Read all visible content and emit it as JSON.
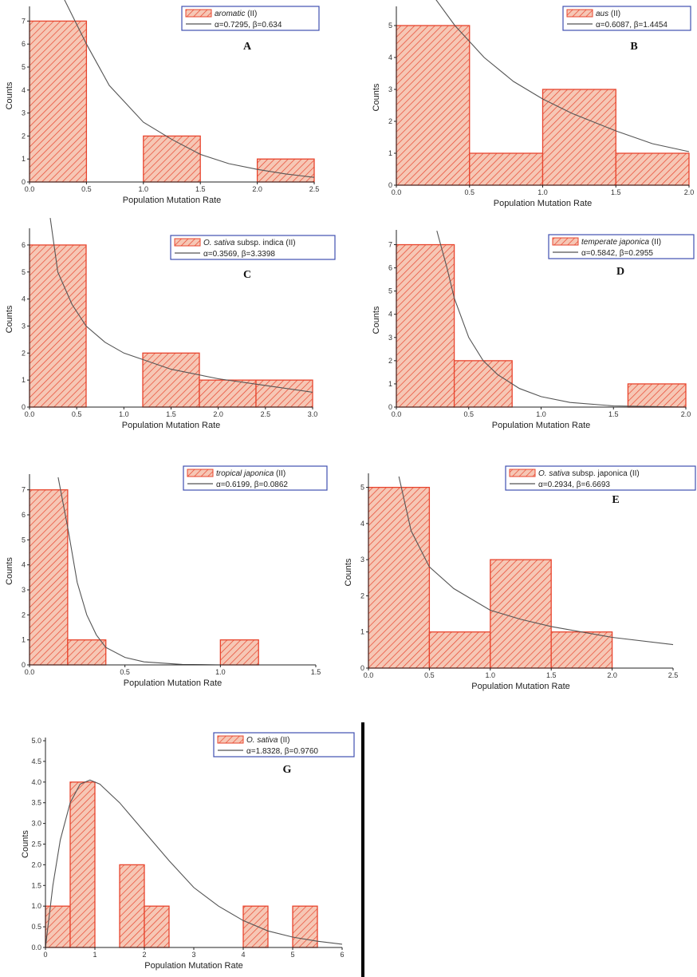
{
  "figure": {
    "divider_color": "#000000",
    "bar_stroke": "#e8452e",
    "bar_fill": "#f6c7b5",
    "hatch_color": "#e8452e",
    "curve_color": "#555555",
    "legend_border": "#3f4fb0"
  },
  "chart_data": [
    {
      "type": "bar",
      "panel": "A",
      "xlabel": "Population Mutation Rate",
      "ylabel": "Counts",
      "xlim": [
        0,
        2.5
      ],
      "ylim": [
        0,
        7.5
      ],
      "xticks": [
        "0.0",
        "0.5",
        "1.0",
        "1.5",
        "2.0",
        "2.5"
      ],
      "yticks": [
        "0",
        "1",
        "2",
        "3",
        "4",
        "5",
        "6",
        "7"
      ],
      "bins": [
        {
          "x0": 0.0,
          "x1": 0.5,
          "value": 7
        },
        {
          "x0": 1.0,
          "x1": 1.5,
          "value": 2
        },
        {
          "x0": 2.0,
          "x1": 2.5,
          "value": 1
        }
      ],
      "legend": {
        "bar_label_prefix": "",
        "bar_label_italic": "aromatic",
        "bar_label_suffix": " (II)",
        "fit_label": "α=0.7295, β=0.634"
      },
      "curve": [
        [
          0.3,
          8.0
        ],
        [
          0.4,
          7.0
        ],
        [
          0.5,
          6.0
        ],
        [
          0.7,
          4.2
        ],
        [
          1.0,
          2.6
        ],
        [
          1.25,
          1.85
        ],
        [
          1.5,
          1.2
        ],
        [
          1.75,
          0.8
        ],
        [
          2.0,
          0.55
        ],
        [
          2.25,
          0.35
        ],
        [
          2.5,
          0.2
        ]
      ]
    },
    {
      "type": "bar",
      "panel": "B",
      "xlabel": "Population Mutation Rate",
      "ylabel": "Counts",
      "xlim": [
        0,
        2.0
      ],
      "ylim": [
        0,
        5.5
      ],
      "xticks": [
        "0.0",
        "0.5",
        "1.0",
        "1.5",
        "2.0"
      ],
      "yticks": [
        "0",
        "1",
        "2",
        "3",
        "4",
        "5"
      ],
      "bins": [
        {
          "x0": 0.0,
          "x1": 0.5,
          "value": 5
        },
        {
          "x0": 0.5,
          "x1": 1.0,
          "value": 1
        },
        {
          "x0": 1.0,
          "x1": 1.5,
          "value": 3
        },
        {
          "x0": 1.5,
          "x1": 2.0,
          "value": 1
        }
      ],
      "legend": {
        "bar_label_prefix": "",
        "bar_label_italic": "aus",
        "bar_label_suffix": " (II)",
        "fit_label": "α=0.6087, β=1.4454"
      },
      "curve": [
        [
          0.25,
          6.0
        ],
        [
          0.4,
          5.0
        ],
        [
          0.6,
          4.0
        ],
        [
          0.8,
          3.25
        ],
        [
          1.0,
          2.7
        ],
        [
          1.2,
          2.25
        ],
        [
          1.5,
          1.7
        ],
        [
          1.75,
          1.3
        ],
        [
          2.0,
          1.05
        ]
      ]
    },
    {
      "type": "bar",
      "panel": "C",
      "xlabel": "Population Mutation Rate",
      "ylabel": "Counts",
      "xlim": [
        0,
        3.0
      ],
      "ylim": [
        0,
        6.5
      ],
      "xticks": [
        "0.0",
        "0.5",
        "1.0",
        "1.5",
        "2.0",
        "2.5",
        "3.0"
      ],
      "yticks": [
        "0",
        "1",
        "2",
        "3",
        "4",
        "5",
        "6"
      ],
      "bins": [
        {
          "x0": 0.0,
          "x1": 0.6,
          "value": 6
        },
        {
          "x0": 1.2,
          "x1": 1.8,
          "value": 2
        },
        {
          "x0": 1.8,
          "x1": 2.4,
          "value": 1
        },
        {
          "x0": 2.4,
          "x1": 3.0,
          "value": 1
        }
      ],
      "legend": {
        "bar_label_prefix": "O. sativa",
        "bar_label_italic": "",
        "bar_label_suffix": " subsp. indica (II)",
        "fit_label": "α=0.3569, β=3.3398"
      },
      "curve": [
        [
          0.22,
          7.0
        ],
        [
          0.3,
          5.0
        ],
        [
          0.45,
          3.8
        ],
        [
          0.6,
          3.0
        ],
        [
          0.8,
          2.4
        ],
        [
          1.0,
          2.0
        ],
        [
          1.5,
          1.4
        ],
        [
          2.0,
          1.05
        ],
        [
          2.5,
          0.8
        ],
        [
          3.0,
          0.55
        ]
      ]
    },
    {
      "type": "bar",
      "panel": "D",
      "xlabel": "Population Mutation Rate",
      "ylabel": "Counts",
      "xlim": [
        0,
        2.0
      ],
      "ylim": [
        0,
        7.5
      ],
      "xticks": [
        "0.0",
        "0.5",
        "1.0",
        "1.5",
        "2.0"
      ],
      "yticks": [
        "0",
        "1",
        "2",
        "3",
        "4",
        "5",
        "6",
        "7"
      ],
      "bins": [
        {
          "x0": 0.0,
          "x1": 0.4,
          "value": 7
        },
        {
          "x0": 0.4,
          "x1": 0.8,
          "value": 2
        },
        {
          "x0": 1.6,
          "x1": 2.0,
          "value": 1
        }
      ],
      "legend": {
        "bar_label_prefix": "",
        "bar_label_italic": "temperate japonica",
        "bar_label_suffix": " (II)",
        "fit_label": "α=0.5842, β=0.2955"
      },
      "curve": [
        [
          0.28,
          7.6
        ],
        [
          0.35,
          6.0
        ],
        [
          0.4,
          4.7
        ],
        [
          0.5,
          3.0
        ],
        [
          0.6,
          2.0
        ],
        [
          0.7,
          1.4
        ],
        [
          0.85,
          0.8
        ],
        [
          1.0,
          0.45
        ],
        [
          1.2,
          0.2
        ],
        [
          1.5,
          0.05
        ],
        [
          2.0,
          0.0
        ]
      ]
    },
    {
      "type": "bar",
      "panel": "",
      "xlabel": "Population Mutation Rate",
      "ylabel": "Counts",
      "xlim": [
        0,
        1.5
      ],
      "ylim": [
        0,
        7.5
      ],
      "xticks": [
        "0.0",
        "0.5",
        "1.0",
        "1.5"
      ],
      "yticks": [
        "0",
        "1",
        "2",
        "3",
        "4",
        "5",
        "6",
        "7"
      ],
      "bins": [
        {
          "x0": 0.0,
          "x1": 0.2,
          "value": 7
        },
        {
          "x0": 0.2,
          "x1": 0.4,
          "value": 1
        },
        {
          "x0": 1.0,
          "x1": 1.2,
          "value": 1
        }
      ],
      "legend": {
        "bar_label_prefix": "",
        "bar_label_italic": "tropical japonica",
        "bar_label_suffix": " (II)",
        "fit_label": "α=0.6199, β=0.0862"
      },
      "curve": [
        [
          0.15,
          7.5
        ],
        [
          0.2,
          5.5
        ],
        [
          0.25,
          3.3
        ],
        [
          0.3,
          2.0
        ],
        [
          0.35,
          1.2
        ],
        [
          0.4,
          0.7
        ],
        [
          0.5,
          0.3
        ],
        [
          0.6,
          0.12
        ],
        [
          0.8,
          0.02
        ],
        [
          1.0,
          0.0
        ],
        [
          1.5,
          0.0
        ]
      ]
    },
    {
      "type": "bar",
      "panel": "E",
      "xlabel": "Population Mutation Rate",
      "ylabel": "Counts",
      "xlim": [
        0,
        2.5
      ],
      "ylim": [
        0,
        5.3
      ],
      "xticks": [
        "0.0",
        "0.5",
        "1.0",
        "1.5",
        "2.0",
        "2.5"
      ],
      "yticks": [
        "0",
        "1",
        "2",
        "3",
        "4",
        "5"
      ],
      "bins": [
        {
          "x0": 0.0,
          "x1": 0.5,
          "value": 5
        },
        {
          "x0": 0.5,
          "x1": 1.0,
          "value": 1
        },
        {
          "x0": 1.0,
          "x1": 1.5,
          "value": 3
        },
        {
          "x0": 1.5,
          "x1": 2.0,
          "value": 1
        }
      ],
      "legend": {
        "bar_label_prefix": "O. sativa",
        "bar_label_italic": "",
        "bar_label_suffix": " subsp. japonica (II)",
        "fit_label": "α=0.2934, β=6.6693"
      },
      "curve": [
        [
          0.25,
          5.3
        ],
        [
          0.35,
          3.8
        ],
        [
          0.5,
          2.8
        ],
        [
          0.7,
          2.2
        ],
        [
          1.0,
          1.6
        ],
        [
          1.25,
          1.35
        ],
        [
          1.5,
          1.15
        ],
        [
          2.0,
          0.85
        ],
        [
          2.5,
          0.65
        ]
      ]
    },
    {
      "type": "bar",
      "panel": "G",
      "xlabel": "Population Mutation Rate",
      "ylabel": "Counts",
      "xlim": [
        0,
        6
      ],
      "ylim": [
        0,
        5.0
      ],
      "xticks": [
        "0",
        "1",
        "2",
        "3",
        "4",
        "5",
        "6"
      ],
      "yticks": [
        "0.0",
        "0.5",
        "1.0",
        "1.5",
        "2.0",
        "2.5",
        "3.0",
        "3.5",
        "4.0",
        "4.5",
        "5.0"
      ],
      "bins": [
        {
          "x0": 0.0,
          "x1": 0.5,
          "value": 1
        },
        {
          "x0": 0.5,
          "x1": 1.0,
          "value": 4
        },
        {
          "x0": 1.5,
          "x1": 2.0,
          "value": 2
        },
        {
          "x0": 2.0,
          "x1": 2.5,
          "value": 1
        },
        {
          "x0": 4.0,
          "x1": 4.5,
          "value": 1
        },
        {
          "x0": 5.0,
          "x1": 5.5,
          "value": 1
        }
      ],
      "legend": {
        "bar_label_prefix": "O. sativa",
        "bar_label_italic": "",
        "bar_label_suffix": " (II)",
        "fit_label": "α=1.8328, β=0.9760"
      },
      "curve": [
        [
          0.0,
          0.0
        ],
        [
          0.15,
          1.5
        ],
        [
          0.3,
          2.6
        ],
        [
          0.5,
          3.5
        ],
        [
          0.7,
          3.95
        ],
        [
          0.9,
          4.05
        ],
        [
          1.1,
          3.95
        ],
        [
          1.5,
          3.5
        ],
        [
          2.0,
          2.8
        ],
        [
          2.5,
          2.1
        ],
        [
          3.0,
          1.45
        ],
        [
          3.5,
          1.0
        ],
        [
          4.0,
          0.65
        ],
        [
          4.5,
          0.4
        ],
        [
          5.0,
          0.25
        ],
        [
          5.5,
          0.15
        ],
        [
          6.0,
          0.08
        ]
      ]
    }
  ]
}
